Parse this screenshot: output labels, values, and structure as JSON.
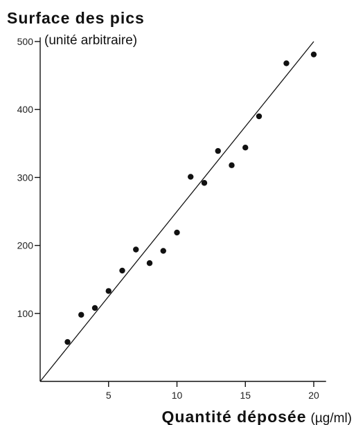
{
  "chart_data": {
    "type": "scatter",
    "title": "Surface des pics",
    "ylabel_unit": "(unité arbitraire)",
    "xlabel": "Quantité déposée",
    "xlabel_unit": "(µg/ml)",
    "xlim": [
      0,
      21
    ],
    "ylim": [
      0,
      500
    ],
    "x_ticks": [
      5,
      10,
      15,
      20
    ],
    "x_tick_labels": [
      "5",
      "10",
      "15",
      "20"
    ],
    "y_ticks": [
      100,
      200,
      300,
      400,
      500
    ],
    "y_tick_labels": [
      "100",
      "200",
      "300",
      "400",
      "500"
    ],
    "grid": false,
    "series": [
      {
        "x": [
          2,
          3,
          4,
          5,
          6,
          7,
          8,
          9,
          10,
          11,
          12,
          13,
          14,
          15,
          16,
          18,
          20
        ],
        "y": [
          58,
          98,
          108,
          133,
          163,
          194,
          174,
          192,
          219,
          301,
          292,
          339,
          318,
          344,
          390,
          468,
          481
        ]
      }
    ],
    "fit_line": {
      "x": [
        0,
        20
      ],
      "y": [
        0,
        500
      ]
    }
  }
}
